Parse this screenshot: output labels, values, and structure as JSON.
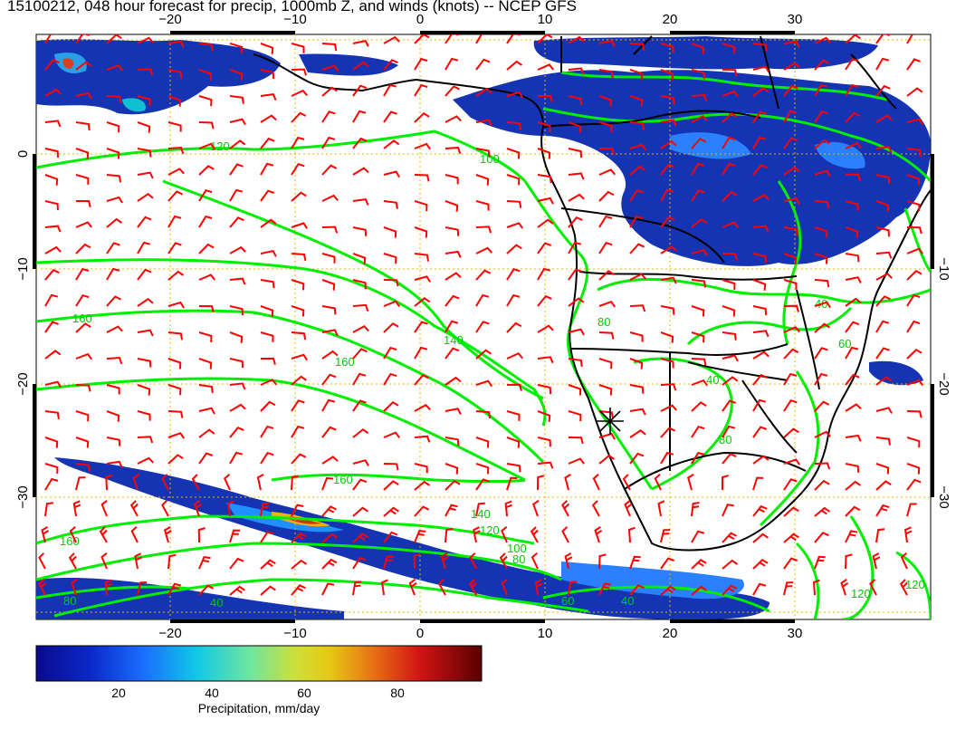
{
  "title": "15100212, 048 hour forecast for precip, 1000mb Z, and winds (knots) -- NCEP GFS",
  "colors": {
    "wind_barbs": "#ff0000",
    "height_contours": "#00ee00",
    "coastlines_borders": "#000000",
    "graticule": "#e8b400",
    "precip_low": "#0a1ea0",
    "precip_high": "#6a0000"
  },
  "map": {
    "projection": "Mercator",
    "lon_range": [
      -30,
      40
    ],
    "lat_range": [
      -40,
      10
    ],
    "grid_lines_dashed": true,
    "lon_ticks": [
      "−20",
      "−10",
      "0",
      "10",
      "20",
      "30"
    ],
    "lat_ticks": [
      "0",
      "−10",
      "−20",
      "−30"
    ],
    "wind_barbs_units": "knots",
    "contour_labels": [
      "120",
      "100",
      "160",
      "140",
      "160",
      "160",
      "160",
      "140",
      "120",
      "100",
      "80",
      "60",
      "40",
      "80",
      "80",
      "40",
      "40",
      "60",
      "120",
      "40",
      "120",
      "80"
    ],
    "station_marker": "star-cross",
    "station_marker_lon_lat": [
      15,
      -23
    ]
  },
  "colorbar": {
    "label": "Precipitation, mm/day",
    "range": [
      0,
      100
    ],
    "tick_labels": [
      "20",
      "40",
      "60",
      "80"
    ],
    "tick_values": [
      20,
      40,
      60,
      80
    ]
  }
}
